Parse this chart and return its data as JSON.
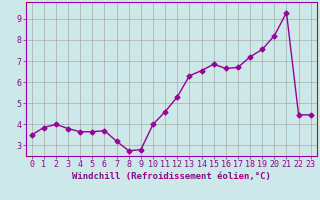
{
  "x": [
    0,
    1,
    2,
    3,
    4,
    5,
    6,
    7,
    8,
    9,
    10,
    11,
    12,
    13,
    14,
    15,
    16,
    17,
    18,
    19,
    20,
    21,
    22,
    23
  ],
  "y": [
    3.5,
    3.85,
    4.0,
    3.8,
    3.65,
    3.65,
    3.7,
    3.2,
    2.75,
    2.8,
    4.0,
    4.6,
    5.3,
    6.3,
    6.55,
    6.85,
    6.65,
    6.7,
    7.2,
    7.55,
    8.2,
    9.3,
    4.45,
    4.45
  ],
  "line_color": "#990099",
  "marker": "D",
  "markersize": 2.5,
  "linewidth": 1.0,
  "bg_color": "#cce8e8",
  "plot_bg_color": "#cce8e8",
  "grid_color": "#aaaaaa",
  "xlabel": "Windchill (Refroidissement éolien,°C)",
  "xlabel_color": "#990099",
  "ylabel_ticks": [
    3,
    4,
    5,
    6,
    7,
    8,
    9
  ],
  "ylim": [
    2.5,
    9.8
  ],
  "xlim": [
    -0.5,
    23.5
  ],
  "xtick_labels": [
    "0",
    "1",
    "2",
    "3",
    "4",
    "5",
    "6",
    "7",
    "8",
    "9",
    "10",
    "11",
    "12",
    "13",
    "14",
    "15",
    "16",
    "17",
    "18",
    "19",
    "20",
    "21",
    "22",
    "23"
  ],
  "tick_color": "#990099",
  "label_fontsize": 6.5,
  "tick_fontsize": 6.0
}
